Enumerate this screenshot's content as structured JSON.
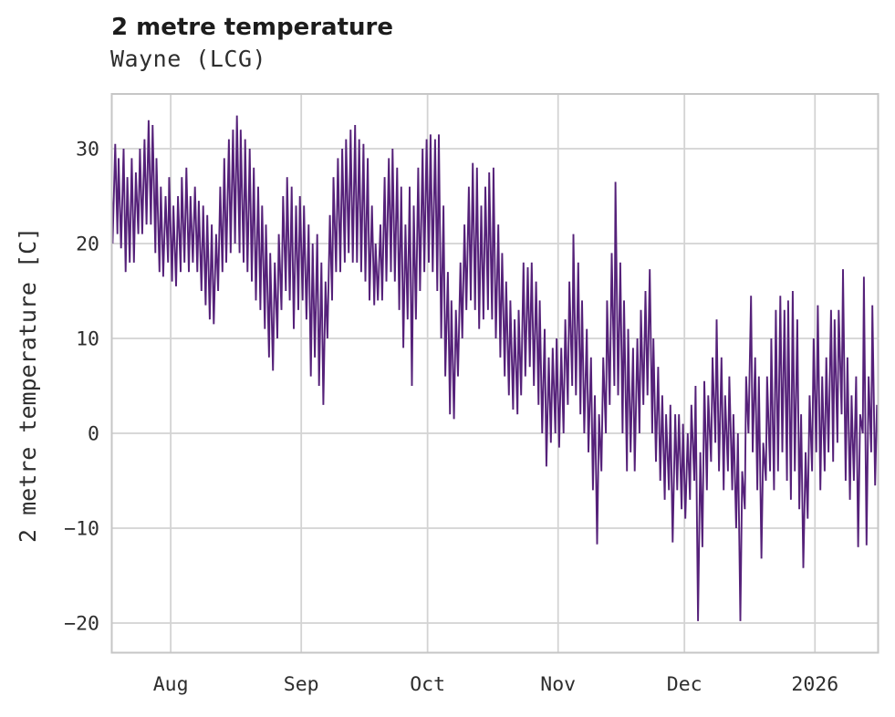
{
  "chart_data": {
    "type": "line",
    "title": "2 metre temperature",
    "subtitle": "Wayne (LCG)",
    "ylabel": "2 metre temperature [C]",
    "xlabel": "",
    "legend": "none",
    "grid": "on",
    "line_color": "#552179",
    "grid_color": "#d3d3d3",
    "frame_color": "#c6c6c6",
    "text_color": "#2d2d2d",
    "title_color": "#1c1c1c",
    "background_color": "#ffffff",
    "ylim": [
      -23.2,
      35.8
    ],
    "x_range_days": [
      0,
      182
    ],
    "y_ticks": [
      {
        "label": "30",
        "value": 30
      },
      {
        "label": "20",
        "value": 20
      },
      {
        "label": "10",
        "value": 10
      },
      {
        "label": "0",
        "value": 0
      },
      {
        "label": "−10",
        "value": -10
      },
      {
        "label": "−20",
        "value": -20
      }
    ],
    "x_ticks": [
      {
        "label": "Aug",
        "day": 14
      },
      {
        "label": "Sep",
        "day": 45
      },
      {
        "label": "Oct",
        "day": 75
      },
      {
        "label": "Nov",
        "day": 106
      },
      {
        "label": "Dec",
        "day": 136
      },
      {
        "label": "2026",
        "day": 167
      }
    ],
    "series": [
      {
        "name": "2 metre temperature",
        "x_unit": "day index from start of trace (~mid-July) ",
        "value_unit": "C",
        "daily_min_max": [
          [
            20,
            30.5
          ],
          [
            21,
            29
          ],
          [
            19.5,
            30
          ],
          [
            17,
            27
          ],
          [
            18,
            29
          ],
          [
            18,
            27.5
          ],
          [
            21,
            30
          ],
          [
            21,
            31
          ],
          [
            22,
            33
          ],
          [
            22,
            32.5
          ],
          [
            19,
            29
          ],
          [
            17,
            26
          ],
          [
            16.5,
            25
          ],
          [
            18,
            27
          ],
          [
            16,
            24
          ],
          [
            15.5,
            25
          ],
          [
            17,
            27
          ],
          [
            18,
            28
          ],
          [
            17,
            25
          ],
          [
            18,
            26
          ],
          [
            17,
            24.5
          ],
          [
            15,
            24
          ],
          [
            13.5,
            23
          ],
          [
            12,
            22
          ],
          [
            11.5,
            21
          ],
          [
            15,
            26
          ],
          [
            17,
            29
          ],
          [
            18,
            31
          ],
          [
            19,
            32
          ],
          [
            20,
            33.5
          ],
          [
            19,
            32
          ],
          [
            18,
            31
          ],
          [
            17,
            30
          ],
          [
            16,
            28
          ],
          [
            14,
            26
          ],
          [
            13,
            24
          ],
          [
            11,
            22
          ],
          [
            8,
            19
          ],
          [
            6.6,
            18
          ],
          [
            10,
            21
          ],
          [
            13,
            25
          ],
          [
            15,
            27
          ],
          [
            14,
            26
          ],
          [
            11,
            24
          ],
          [
            13,
            25
          ],
          [
            14,
            24
          ],
          [
            12,
            22
          ],
          [
            6,
            20
          ],
          [
            8,
            21
          ],
          [
            5,
            18
          ],
          [
            3,
            16
          ],
          [
            10,
            23
          ],
          [
            14,
            27
          ],
          [
            17,
            29
          ],
          [
            17,
            30
          ],
          [
            18,
            31
          ],
          [
            19,
            32
          ],
          [
            18,
            32.5
          ],
          [
            18,
            31
          ],
          [
            17,
            30.5
          ],
          [
            16,
            29
          ],
          [
            14,
            24
          ],
          [
            13.5,
            20
          ],
          [
            14,
            22
          ],
          [
            14,
            27
          ],
          [
            16,
            29
          ],
          [
            17,
            30
          ],
          [
            16,
            28
          ],
          [
            13,
            26
          ],
          [
            9,
            22
          ],
          [
            12,
            26
          ],
          [
            5,
            24
          ],
          [
            12,
            28
          ],
          [
            15,
            30
          ],
          [
            17,
            31
          ],
          [
            18,
            31.5
          ],
          [
            17,
            31
          ],
          [
            15,
            31.5
          ],
          [
            10,
            24
          ],
          [
            6,
            17
          ],
          [
            2,
            14
          ],
          [
            1.5,
            13
          ],
          [
            6,
            18
          ],
          [
            10,
            22
          ],
          [
            13,
            26
          ],
          [
            14,
            28.5
          ],
          [
            13,
            28
          ],
          [
            11,
            24
          ],
          [
            12,
            26
          ],
          [
            13,
            27.5
          ],
          [
            12,
            28
          ],
          [
            10,
            22
          ],
          [
            8,
            19
          ],
          [
            6,
            16
          ],
          [
            4,
            14
          ],
          [
            2.5,
            12
          ],
          [
            2,
            13
          ],
          [
            4,
            18
          ],
          [
            6,
            17.5
          ],
          [
            7,
            18
          ],
          [
            5,
            16
          ],
          [
            3,
            14
          ],
          [
            0,
            11
          ],
          [
            -3.5,
            8
          ],
          [
            -1,
            9
          ],
          [
            0,
            10
          ],
          [
            -1.5,
            9
          ],
          [
            0,
            12
          ],
          [
            3,
            16
          ],
          [
            5,
            21
          ],
          [
            4,
            18
          ],
          [
            2,
            14
          ],
          [
            0,
            11
          ],
          [
            -2,
            8
          ],
          [
            -6,
            4
          ],
          [
            -11.7,
            2
          ],
          [
            -4,
            8
          ],
          [
            0,
            14
          ],
          [
            3,
            19
          ],
          [
            5,
            26.5
          ],
          [
            4,
            18
          ],
          [
            0,
            14
          ],
          [
            -4,
            11
          ],
          [
            -2,
            9
          ],
          [
            -4,
            10
          ],
          [
            0,
            13
          ],
          [
            3,
            15
          ],
          [
            4,
            17.3
          ],
          [
            0,
            10
          ],
          [
            -3,
            7
          ],
          [
            -5,
            4
          ],
          [
            -7,
            2
          ],
          [
            -6,
            3
          ],
          [
            -11.5,
            2
          ],
          [
            -6,
            2
          ],
          [
            -8,
            1
          ],
          [
            -9,
            0
          ],
          [
            -7,
            3
          ],
          [
            -5,
            5
          ],
          [
            -19.8,
            -2
          ],
          [
            -12,
            5.5
          ],
          [
            -6,
            4
          ],
          [
            -3,
            8
          ],
          [
            -1,
            12
          ],
          [
            -4,
            8
          ],
          [
            -6,
            4
          ],
          [
            -4,
            6
          ],
          [
            -6,
            2
          ],
          [
            -10,
            0
          ],
          [
            -19.8,
            -4
          ],
          [
            -8,
            6
          ],
          [
            0,
            14.5
          ],
          [
            -2,
            8
          ],
          [
            -6,
            6
          ],
          [
            -13.2,
            -1
          ],
          [
            -5,
            6
          ],
          [
            -4,
            10
          ],
          [
            -6,
            13
          ],
          [
            -4,
            14.5
          ],
          [
            -2,
            13
          ],
          [
            -5,
            14
          ],
          [
            -7,
            15
          ],
          [
            -4,
            12
          ],
          [
            -8,
            2
          ],
          [
            -14.2,
            -2
          ],
          [
            -9,
            4
          ],
          [
            -4,
            10
          ],
          [
            -2,
            13.5
          ],
          [
            -6,
            6
          ],
          [
            -4,
            8
          ],
          [
            -2,
            13
          ],
          [
            -3,
            12
          ],
          [
            -1,
            13
          ],
          [
            2,
            17.3
          ],
          [
            -5,
            8
          ],
          [
            -7,
            4
          ],
          [
            -5,
            6
          ],
          [
            -12,
            2
          ],
          [
            0,
            16.5
          ],
          [
            -11.8,
            6
          ],
          [
            -2,
            13.5
          ],
          [
            -5.5,
            3
          ]
        ]
      }
    ]
  }
}
